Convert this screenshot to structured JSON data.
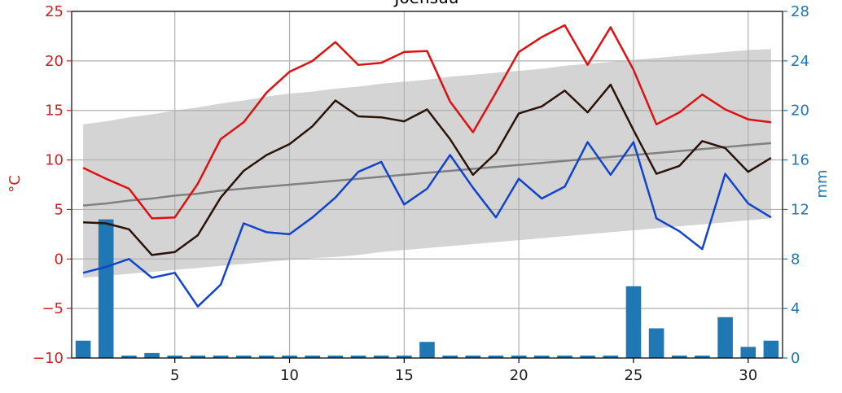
{
  "chart_data": {
    "type": "line",
    "title": "Joensuu",
    "xlabel": "",
    "ylabel_left": "°C",
    "ylabel_right": "mm",
    "xlim": [
      0.5,
      31.5
    ],
    "ylim_left": [
      -10,
      25
    ],
    "ylim_right": [
      0,
      28
    ],
    "xticks": [
      5,
      10,
      15,
      20,
      25,
      30
    ],
    "yticks_left": [
      -10,
      -5,
      0,
      5,
      10,
      15,
      20,
      25
    ],
    "yticks_right": [
      0,
      4,
      8,
      12,
      16,
      20,
      24,
      28
    ],
    "grid": true,
    "x": [
      1,
      2,
      3,
      4,
      5,
      6,
      7,
      8,
      9,
      10,
      11,
      12,
      13,
      14,
      15,
      16,
      17,
      18,
      19,
      20,
      21,
      22,
      23,
      24,
      25,
      26,
      27,
      28,
      29,
      30,
      31
    ],
    "colors": {
      "max_temp": "#dd1111",
      "mean_temp": "#2a1408",
      "min_temp": "#1144cc",
      "normal_mean": "#808080",
      "normal_band": "#d4d4d4",
      "precip": "#1f77b4",
      "left_axis": "#cc2222",
      "right_axis": "#1f77b4"
    },
    "series": [
      {
        "key": "max_temp",
        "axis": "left",
        "values": [
          9.2,
          8.1,
          7.1,
          4.1,
          4.2,
          7.6,
          12.1,
          13.8,
          16.8,
          18.9,
          20.0,
          21.9,
          19.6,
          19.8,
          20.9,
          21.0,
          15.9,
          12.8,
          16.8,
          20.9,
          22.4,
          23.6,
          19.6,
          23.4,
          19.1,
          13.6,
          14.8,
          16.6,
          15.1,
          14.1,
          13.8
        ]
      },
      {
        "key": "mean_temp",
        "axis": "left",
        "values": [
          3.7,
          3.6,
          3.0,
          0.4,
          0.7,
          2.4,
          6.2,
          8.9,
          10.5,
          11.6,
          13.4,
          16.0,
          14.4,
          14.3,
          13.9,
          15.1,
          12.1,
          8.5,
          10.7,
          14.7,
          15.4,
          17.0,
          14.8,
          17.6,
          13.0,
          8.6,
          9.4,
          11.9,
          11.2,
          8.8,
          10.2
        ]
      },
      {
        "key": "min_temp",
        "axis": "left",
        "values": [
          -1.4,
          -0.8,
          0.0,
          -1.9,
          -1.4,
          -4.8,
          -2.6,
          3.6,
          2.7,
          2.5,
          4.2,
          6.2,
          8.8,
          9.8,
          5.5,
          7.1,
          10.5,
          7.2,
          4.2,
          8.1,
          6.1,
          7.3,
          11.8,
          8.5,
          11.8,
          4.1,
          2.8,
          1.0,
          8.6,
          5.6,
          4.2
        ]
      },
      {
        "key": "normal_mean",
        "axis": "left",
        "values": [
          5.4,
          5.6,
          5.9,
          6.1,
          6.4,
          6.6,
          6.9,
          7.1,
          7.3,
          7.5,
          7.7,
          7.9,
          8.1,
          8.3,
          8.5,
          8.7,
          8.9,
          9.1,
          9.3,
          9.5,
          9.7,
          9.9,
          10.1,
          10.3,
          10.5,
          10.7,
          10.9,
          11.1,
          11.3,
          11.5,
          11.7
        ]
      },
      {
        "key": "normal_band_upper",
        "axis": "left",
        "values": [
          13.6,
          13.9,
          14.3,
          14.6,
          15.0,
          15.3,
          15.7,
          16.0,
          16.4,
          16.7,
          16.9,
          17.2,
          17.4,
          17.7,
          17.9,
          18.1,
          18.4,
          18.6,
          18.8,
          19.0,
          19.2,
          19.5,
          19.7,
          19.9,
          20.1,
          20.3,
          20.5,
          20.7,
          20.9,
          21.1,
          21.2
        ]
      },
      {
        "key": "normal_band_lower",
        "axis": "left",
        "values": [
          -1.9,
          -1.7,
          -1.5,
          -1.3,
          -1.1,
          -0.9,
          -0.7,
          -0.5,
          -0.3,
          -0.1,
          0.1,
          0.2,
          0.4,
          0.7,
          0.9,
          1.1,
          1.3,
          1.5,
          1.7,
          1.9,
          2.1,
          2.3,
          2.5,
          2.7,
          2.9,
          3.1,
          3.3,
          3.5,
          3.7,
          3.9,
          4.1
        ]
      },
      {
        "key": "precip",
        "axis": "right",
        "type": "bar",
        "values": [
          1.4,
          11.2,
          0.2,
          0.4,
          0.2,
          0.2,
          0.2,
          0.2,
          0.2,
          0.2,
          0.2,
          0.2,
          0.2,
          0.2,
          0.2,
          1.3,
          0.2,
          0.2,
          0.2,
          0.2,
          0.2,
          0.2,
          0.2,
          0.2,
          5.8,
          2.4,
          0.2,
          0.2,
          3.3,
          0.9,
          1.4
        ]
      }
    ]
  }
}
